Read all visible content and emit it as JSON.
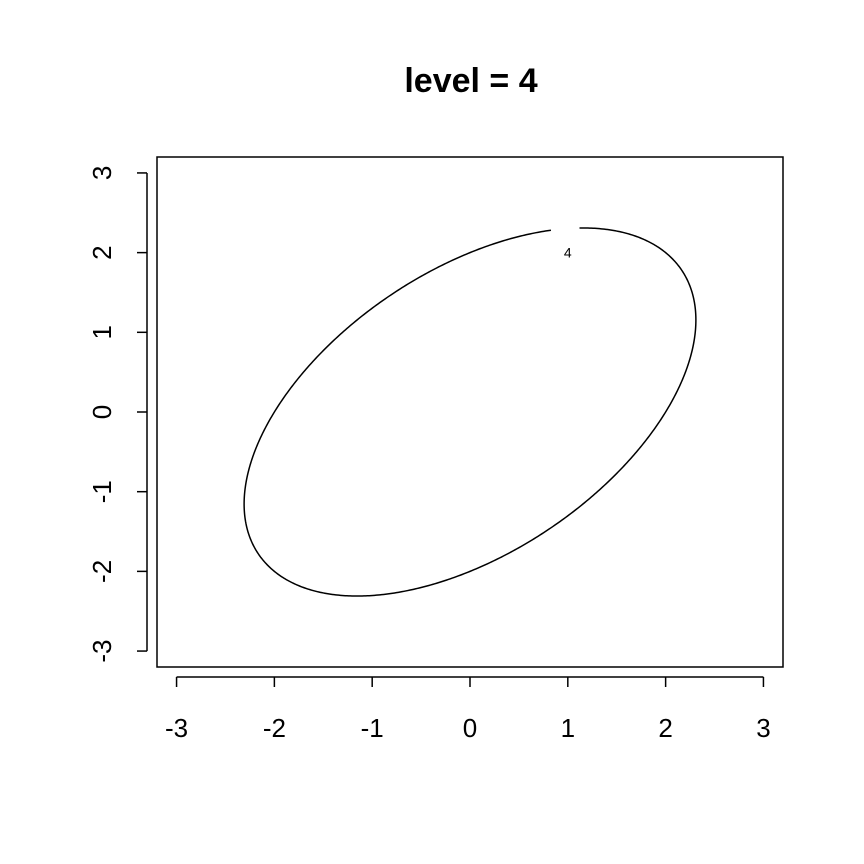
{
  "chart_data": {
    "type": "contour",
    "title": "level = 4",
    "xlabel": "",
    "ylabel": "",
    "xlim": [
      -3.2,
      3.2
    ],
    "ylim": [
      -3.2,
      3.2
    ],
    "x_ticks": [
      -3,
      -2,
      -1,
      0,
      1,
      2,
      3
    ],
    "y_ticks": [
      -3,
      -2,
      -1,
      0,
      1,
      2,
      3
    ],
    "x_tick_labels": [
      "-3",
      "-2",
      "-1",
      "0",
      "1",
      "2",
      "3"
    ],
    "y_tick_labels": [
      "-3",
      "-2",
      "-1",
      "0",
      "1",
      "2",
      "3"
    ],
    "grid": false,
    "line_color": "#000000",
    "contours": [
      {
        "level": 4,
        "label": "4",
        "equation": "x^2 - x*y + y^2 = 4",
        "label_position": [
          1,
          2
        ]
      }
    ]
  }
}
